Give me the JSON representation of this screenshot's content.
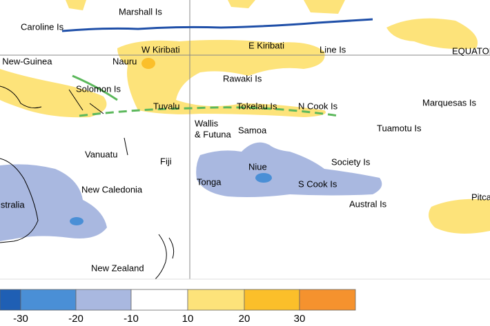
{
  "map": {
    "labels": [
      "Marshall Is",
      "Caroline Is",
      "W Kiribati",
      "E Kiribati",
      "Line Is",
      "EQUATOR",
      "Papua New-Guinea",
      "Nauru",
      "Solomon Is",
      "Rawaki Is",
      "Tuvalu",
      "Tokelau Is",
      "N Cook Is",
      "Marquesas Is",
      "Wallis",
      "& Futuna",
      "Samoa",
      "Tuamotu Is",
      "Vanuatu",
      "Fiji",
      "Niue",
      "Society Is",
      "Tonga",
      "S Cook Is",
      "New Caledonia",
      "Australia",
      "Austral Is",
      "Pitcairn",
      "New Zealand"
    ],
    "legend": {
      "colors": [
        "#1f5fb4",
        "#4a8fd6",
        "#a9b8e0",
        "#ffffff",
        "#fde37a",
        "#fbbf2a",
        "#f5922e"
      ],
      "ticks": [
        -30,
        -20,
        -10,
        10,
        20,
        30
      ]
    }
  }
}
